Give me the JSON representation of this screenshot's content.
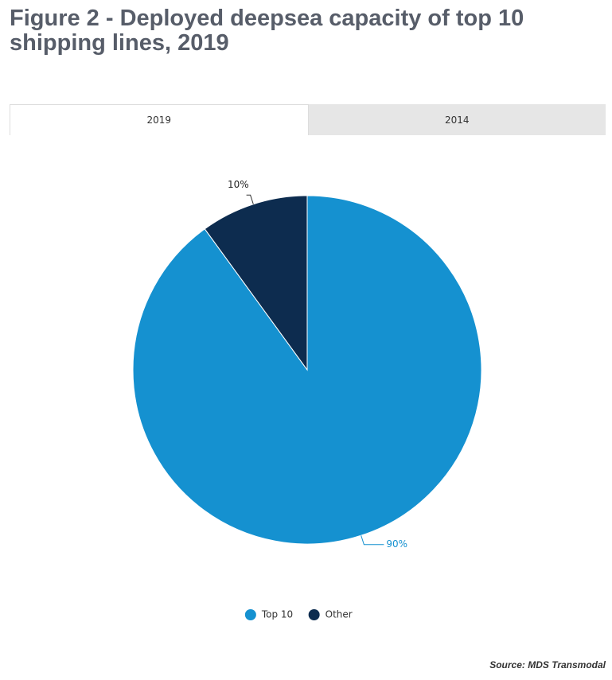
{
  "chart_data": {
    "type": "pie",
    "title": "Figure 2 - Deployed deepsea capacity of top 10 shipping lines, 2019",
    "categories": [
      "Top 10",
      "Other"
    ],
    "values": [
      90,
      10
    ],
    "value_labels": [
      "90%",
      "10%"
    ],
    "colors": [
      "#1591d0",
      "#0d2c4f"
    ],
    "legend": "bottom"
  },
  "tabs": [
    "2019",
    "2014"
  ],
  "active_tab": 0,
  "source": "Source: MDS Transmodal"
}
